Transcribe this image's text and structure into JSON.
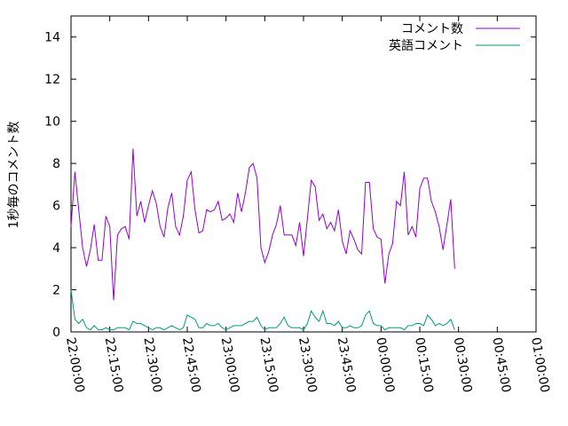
{
  "chart_data": {
    "type": "line",
    "title": "",
    "xlabel": "",
    "ylabel": "1秒毎のコメント数",
    "ylim": [
      0,
      15
    ],
    "yticks": [
      0,
      2,
      4,
      6,
      8,
      10,
      12,
      14
    ],
    "xlim": [
      "22:00:00",
      "01:00:00"
    ],
    "xtick_labels": [
      "22:00:00",
      "22:15:00",
      "22:30:00",
      "22:45:00",
      "23:00:00",
      "23:15:00",
      "23:30:00",
      "23:45:00",
      "00:00:00",
      "00:15:00",
      "00:30:00",
      "00:45:00",
      "01:00:00"
    ],
    "x_interval_minutes": 1.5,
    "grid": false,
    "legend_position": "top-right",
    "series": [
      {
        "name": "コメント数",
        "color": "#9400d3",
        "values": [
          5.0,
          7.6,
          5.8,
          4.0,
          3.1,
          3.9,
          5.1,
          3.4,
          3.4,
          5.5,
          5.0,
          1.5,
          4.6,
          4.9,
          5.0,
          4.4,
          8.7,
          5.5,
          6.2,
          5.2,
          6.0,
          6.7,
          6.1,
          5.0,
          4.5,
          5.9,
          6.6,
          5.0,
          4.6,
          5.5,
          7.2,
          7.6,
          5.8,
          4.7,
          4.8,
          5.8,
          5.7,
          5.8,
          6.2,
          5.3,
          5.4,
          5.6,
          5.2,
          6.6,
          5.7,
          6.6,
          7.8,
          8.0,
          7.3,
          4.0,
          3.3,
          3.8,
          4.6,
          5.1,
          6.0,
          4.6,
          4.6,
          4.6,
          4.1,
          5.2,
          3.6,
          5.4,
          7.2,
          6.9,
          5.3,
          5.6,
          4.9,
          5.2,
          4.8,
          5.8,
          4.3,
          3.7,
          4.8,
          4.4,
          3.9,
          3.7,
          7.1,
          7.1,
          4.9,
          4.5,
          4.4,
          2.3,
          3.7,
          4.2,
          6.2,
          6.0,
          7.6,
          4.6,
          5.0,
          4.5,
          6.8,
          7.3,
          7.3,
          6.2,
          5.7,
          5.0,
          3.9,
          5.1,
          6.3,
          3.0
        ]
      },
      {
        "name": "英語コメント",
        "color": "#009e73",
        "values": [
          2.0,
          0.6,
          0.4,
          0.6,
          0.2,
          0.1,
          0.3,
          0.1,
          0.1,
          0.2,
          0.1,
          0.1,
          0.2,
          0.2,
          0.2,
          0.1,
          0.5,
          0.4,
          0.4,
          0.3,
          0.2,
          0.1,
          0.2,
          0.2,
          0.1,
          0.2,
          0.3,
          0.2,
          0.1,
          0.2,
          0.8,
          0.7,
          0.6,
          0.2,
          0.2,
          0.4,
          0.3,
          0.3,
          0.4,
          0.2,
          0.1,
          0.2,
          0.3,
          0.3,
          0.3,
          0.4,
          0.5,
          0.5,
          0.7,
          0.3,
          0.1,
          0.2,
          0.2,
          0.2,
          0.4,
          0.7,
          0.3,
          0.2,
          0.2,
          0.2,
          0.1,
          0.4,
          1.0,
          0.7,
          0.5,
          1.0,
          0.4,
          0.4,
          0.3,
          0.5,
          0.2,
          0.2,
          0.3,
          0.2,
          0.2,
          0.3,
          0.8,
          1.0,
          0.4,
          0.3,
          0.3,
          0.1,
          0.2,
          0.2,
          0.2,
          0.2,
          0.1,
          0.3,
          0.3,
          0.4,
          0.4,
          0.3,
          0.8,
          0.6,
          0.3,
          0.4,
          0.3,
          0.4,
          0.6,
          0.1
        ]
      }
    ]
  }
}
